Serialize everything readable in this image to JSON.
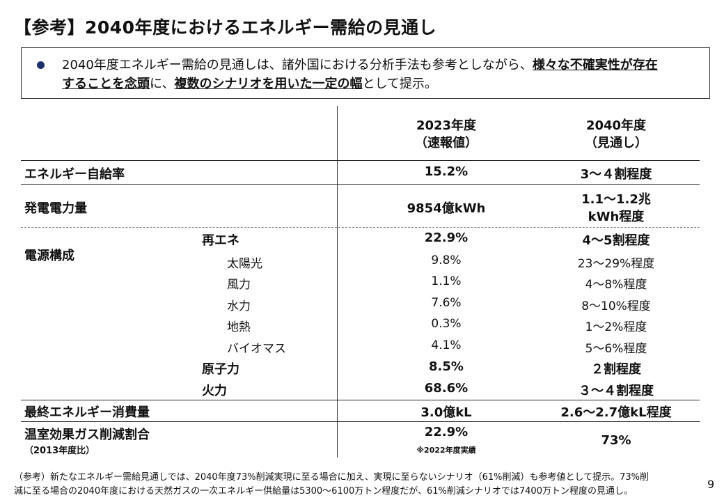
{
  "title": "【参考】2040年度におけるエネルギー需給の見通し",
  "summary": {
    "text_1": "2040年度エネルギー需給の見通しは、諸外国における分析手法も参考としながら、",
    "emph_1a": "様々な不確実性が存在",
    "emph_1b": "することを念頭",
    "text_2": "に、",
    "emph_2": "複数のシナリオを用いた一定の幅",
    "text_3": "として提示。"
  },
  "table": {
    "col_2023_line1": "2023年度",
    "col_2023_line2": "（速報値）",
    "col_2040_line1": "2040年度",
    "col_2040_line2": "（見通し）",
    "self_sufficiency": {
      "label": "エネルギー自給率",
      "v2023": "15.2%",
      "v2040": "3～４割程度"
    },
    "generation": {
      "label": "発電電力量",
      "v2023": "9854億kWh",
      "v2040_line1": "1.1～1.2兆",
      "v2040_line2": "kWh程度"
    },
    "power_mix": {
      "label": "電源構成",
      "renewable": {
        "label": "再エネ",
        "v2023": "22.9%",
        "v2040": "4～5割程度"
      },
      "solar": {
        "label": "太陽光",
        "v2023": "9.8%",
        "v2040": "23～29%程度"
      },
      "wind": {
        "label": "風力",
        "v2023": "1.1%",
        "v2040": "4～8%程度"
      },
      "hydro": {
        "label": "水力",
        "v2023": "7.6%",
        "v2040": "8～10%程度"
      },
      "geothermal": {
        "label": "地熱",
        "v2023": "0.3%",
        "v2040": "1～2%程度"
      },
      "biomass": {
        "label": "バイオマス",
        "v2023": "4.1%",
        "v2040": "5～6%程度"
      },
      "nuclear": {
        "label": "原子力",
        "v2023": "8.5%",
        "v2040": "２割程度"
      },
      "thermal": {
        "label": "火力",
        "v2023": "68.6%",
        "v2040": "３～４割程度"
      }
    },
    "final_consumption": {
      "label": "最終エネルギー消費量",
      "v2023": "3.0億kL",
      "v2040": "2.6～2.7億kL程度"
    },
    "ghg_reduction": {
      "label": "温室効果ガス削減割合",
      "label_sub": "（2013年度比）",
      "v2023": "22.9%",
      "v2023_note": "※2022年度実績",
      "v2040": "73%"
    }
  },
  "footnote": {
    "line1": "（参考）新たなエネルギー需給見通しでは、2040年度73%削減実現に至る場合に加え、実現に至らないシナリオ（61%削減）も参考値として提示。73%削",
    "line2": "減に至る場合の2040年度における天然ガスの一次エネルギー供給量は5300～6100万トン程度だが、61%削減シナリオでは7400万トン程度の見通し。"
  },
  "page_number": "9"
}
